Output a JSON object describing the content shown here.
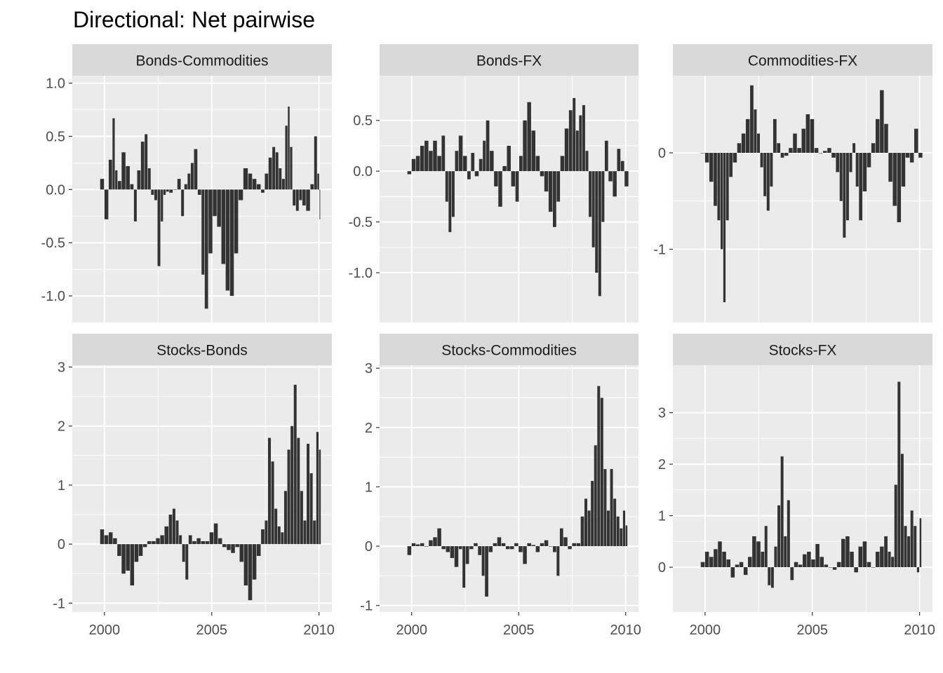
{
  "title": "Directional: Net pairwise",
  "colors": {
    "panel_bg": "#EBEBEB",
    "strip_bg": "#D9D9D9",
    "grid_major": "#FFFFFF",
    "bar": "#333333",
    "axis_text": "#4D4D4D",
    "strip_text": "#1A1A1A"
  },
  "chart_data": [
    {
      "type": "bar",
      "facet": "Bonds-Commodities",
      "x_range": [
        1998.5,
        2010.6
      ],
      "ylim": [
        -1.25,
        1.07
      ],
      "yticks": [
        -1.0,
        -0.5,
        0.0,
        0.5,
        1.0
      ],
      "ytick_labels": [
        "-1.0",
        "-0.5",
        "0.0",
        "0.5",
        "1.0"
      ],
      "xticks": [
        2000,
        2005,
        2010
      ],
      "xtick_labels": [],
      "x": [
        1999.9,
        2000.1,
        2000.3,
        2000.45,
        2000.55,
        2000.7,
        2000.9,
        2001.1,
        2001.3,
        2001.45,
        2001.6,
        2001.8,
        2001.95,
        2002.1,
        2002.25,
        2002.4,
        2002.55,
        2002.7,
        2002.8,
        2002.95,
        2003.1,
        2003.3,
        2003.5,
        2003.65,
        2003.8,
        2003.95,
        2004.1,
        2004.25,
        2004.45,
        2004.6,
        2004.75,
        2004.95,
        2005.15,
        2005.35,
        2005.55,
        2005.75,
        2005.95,
        2006.15,
        2006.35,
        2006.6,
        2006.8,
        2007.0,
        2007.2,
        2007.4,
        2007.55,
        2007.75,
        2007.9,
        2008.05,
        2008.2,
        2008.35,
        2008.5,
        2008.6,
        2008.7,
        2008.85,
        2009.0,
        2009.15,
        2009.3,
        2009.5,
        2009.7,
        2009.85,
        2010.0,
        2010.05
      ],
      "values": [
        0.1,
        -0.28,
        0.28,
        0.67,
        0.18,
        0.08,
        0.35,
        0.22,
        0.05,
        -0.3,
        0.18,
        0.45,
        0.52,
        0.2,
        -0.05,
        -0.1,
        -0.72,
        -0.3,
        -0.05,
        -0.02,
        -0.03,
        0.0,
        0.1,
        -0.25,
        0.05,
        0.15,
        0.25,
        0.38,
        -0.05,
        -0.8,
        -1.12,
        -0.6,
        -0.25,
        -0.35,
        -0.7,
        -0.95,
        -1.0,
        -0.6,
        -0.1,
        0.2,
        0.15,
        0.1,
        0.05,
        -0.03,
        0.15,
        0.3,
        0.4,
        0.35,
        0.2,
        0.1,
        0.6,
        0.78,
        0.4,
        -0.15,
        -0.2,
        -0.1,
        -0.15,
        -0.2,
        0.05,
        0.5,
        0.15,
        -0.28
      ]
    },
    {
      "type": "bar",
      "facet": "Bonds-FX",
      "x_range": [
        1998.5,
        2010.6
      ],
      "ylim": [
        -1.49,
        0.94
      ],
      "yticks": [
        -1.0,
        -0.5,
        0.0,
        0.5
      ],
      "ytick_labels": [
        "-1.0",
        "-0.5",
        "0.0",
        "0.5"
      ],
      "xticks": [
        2000,
        2005,
        2010
      ],
      "xtick_labels": [],
      "x": [
        1999.9,
        2000.1,
        2000.3,
        2000.5,
        2000.7,
        2000.9,
        2001.1,
        2001.3,
        2001.5,
        2001.65,
        2001.8,
        2001.95,
        2002.1,
        2002.3,
        2002.5,
        2002.7,
        2002.85,
        2003.05,
        2003.25,
        2003.4,
        2003.55,
        2003.75,
        2003.95,
        2004.15,
        2004.35,
        2004.55,
        2004.75,
        2004.95,
        2005.1,
        2005.3,
        2005.5,
        2005.7,
        2005.9,
        2006.1,
        2006.3,
        2006.5,
        2006.7,
        2006.85,
        2007.05,
        2007.25,
        2007.45,
        2007.6,
        2007.75,
        2007.9,
        2008.05,
        2008.2,
        2008.35,
        2008.5,
        2008.65,
        2008.8,
        2008.95,
        2009.1,
        2009.3,
        2009.5,
        2009.7,
        2009.85,
        2010.05
      ],
      "values": [
        -0.03,
        0.12,
        0.15,
        0.25,
        0.3,
        0.2,
        0.3,
        0.15,
        0.35,
        -0.3,
        -0.6,
        -0.45,
        0.2,
        0.35,
        0.15,
        -0.08,
        0.18,
        -0.05,
        0.12,
        0.3,
        0.5,
        0.2,
        -0.15,
        -0.35,
        0.05,
        0.25,
        -0.15,
        -0.3,
        0.15,
        0.5,
        0.68,
        0.4,
        0.15,
        -0.05,
        -0.2,
        -0.4,
        -0.55,
        -0.3,
        0.15,
        0.42,
        0.6,
        0.72,
        0.4,
        0.55,
        0.65,
        0.2,
        -0.45,
        -0.75,
        -1.0,
        -1.23,
        -0.5,
        0.3,
        -0.1,
        -0.25,
        0.22,
        0.1,
        -0.15
      ]
    },
    {
      "type": "bar",
      "facet": "Commodities-FX",
      "x_range": [
        1998.5,
        2010.6
      ],
      "ylim": [
        -1.76,
        0.8
      ],
      "yticks": [
        -1,
        0
      ],
      "ytick_labels": [
        "-1",
        "0"
      ],
      "xticks": [
        2000,
        2005,
        2010
      ],
      "xtick_labels": [],
      "x": [
        1999.9,
        2000.1,
        2000.3,
        2000.5,
        2000.65,
        2000.8,
        2000.9,
        2001.05,
        2001.2,
        2001.4,
        2001.6,
        2001.8,
        2002.0,
        2002.2,
        2002.35,
        2002.5,
        2002.65,
        2002.8,
        2002.95,
        2003.1,
        2003.25,
        2003.45,
        2003.6,
        2003.8,
        2004.0,
        2004.2,
        2004.4,
        2004.6,
        2004.8,
        2005.0,
        2005.2,
        2005.4,
        2005.6,
        2005.8,
        2006.0,
        2006.2,
        2006.35,
        2006.5,
        2006.65,
        2006.8,
        2006.95,
        2007.1,
        2007.25,
        2007.45,
        2007.65,
        2007.85,
        2008.05,
        2008.25,
        2008.45,
        2008.65,
        2008.85,
        2009.05,
        2009.25,
        2009.45,
        2009.65,
        2009.85,
        2010.05
      ],
      "values": [
        0.0,
        -0.1,
        -0.3,
        -0.55,
        -0.7,
        -1.0,
        -1.55,
        -0.7,
        -0.25,
        -0.1,
        0.1,
        0.2,
        0.35,
        0.7,
        0.45,
        0.2,
        -0.15,
        -0.45,
        -0.6,
        -0.35,
        0.35,
        0.1,
        -0.05,
        -0.03,
        0.05,
        0.2,
        0.05,
        0.25,
        0.4,
        0.35,
        0.05,
        0.0,
        0.02,
        0.05,
        -0.05,
        -0.2,
        -0.5,
        -0.88,
        -0.7,
        -0.2,
        0.1,
        -0.35,
        -0.7,
        -0.4,
        -0.15,
        0.1,
        0.35,
        0.65,
        0.3,
        -0.3,
        -0.55,
        -0.72,
        -0.35,
        -0.05,
        -0.1,
        0.25,
        -0.05
      ]
    },
    {
      "type": "bar",
      "facet": "Stocks-Bonds",
      "x_range": [
        1998.5,
        2010.6
      ],
      "ylim": [
        -1.15,
        3.03
      ],
      "yticks": [
        -1,
        0,
        1,
        2,
        3
      ],
      "ytick_labels": [
        "-1",
        "0",
        "1",
        "2",
        "3"
      ],
      "xticks": [
        2000,
        2005,
        2010
      ],
      "xtick_labels": [
        "2000",
        "2005",
        "2010"
      ],
      "x": [
        1999.9,
        2000.1,
        2000.3,
        2000.5,
        2000.7,
        2000.9,
        2001.1,
        2001.3,
        2001.5,
        2001.7,
        2001.9,
        2002.1,
        2002.3,
        2002.5,
        2002.7,
        2002.9,
        2003.1,
        2003.25,
        2003.4,
        2003.55,
        2003.7,
        2003.85,
        2004.0,
        2004.2,
        2004.4,
        2004.6,
        2004.8,
        2005.0,
        2005.2,
        2005.4,
        2005.6,
        2005.8,
        2006.0,
        2006.2,
        2006.4,
        2006.6,
        2006.8,
        2007.0,
        2007.2,
        2007.4,
        2007.55,
        2007.7,
        2007.85,
        2008.0,
        2008.15,
        2008.3,
        2008.45,
        2008.6,
        2008.75,
        2008.9,
        2009.05,
        2009.2,
        2009.35,
        2009.5,
        2009.65,
        2009.8,
        2009.95,
        2010.05
      ],
      "values": [
        0.25,
        0.15,
        0.2,
        0.1,
        -0.2,
        -0.5,
        -0.45,
        -0.7,
        -0.3,
        -0.2,
        -0.05,
        0.05,
        0.05,
        0.1,
        0.15,
        0.3,
        0.5,
        0.6,
        0.4,
        0.15,
        -0.3,
        -0.6,
        0.15,
        0.05,
        0.1,
        0.05,
        0.05,
        0.2,
        0.35,
        0.1,
        -0.05,
        -0.1,
        -0.15,
        -0.05,
        -0.3,
        -0.7,
        -0.95,
        -0.6,
        -0.2,
        0.25,
        0.4,
        1.8,
        1.4,
        0.6,
        0.3,
        0.2,
        0.9,
        1.6,
        2.0,
        2.7,
        1.8,
        0.9,
        0.4,
        1.7,
        1.2,
        0.4,
        1.9,
        1.6
      ]
    },
    {
      "type": "bar",
      "facet": "Stocks-Commodities",
      "x_range": [
        1998.5,
        2010.6
      ],
      "ylim": [
        -1.11,
        3.05
      ],
      "yticks": [
        -1,
        0,
        1,
        2,
        3
      ],
      "ytick_labels": [
        "-1",
        "0",
        "1",
        "2",
        "3"
      ],
      "xticks": [
        2000,
        2005,
        2010
      ],
      "xtick_labels": [
        "2000",
        "2005",
        "2010"
      ],
      "x": [
        1999.9,
        2000.1,
        2000.3,
        2000.5,
        2000.7,
        2000.9,
        2001.1,
        2001.3,
        2001.5,
        2001.7,
        2001.9,
        2002.1,
        2002.3,
        2002.45,
        2002.6,
        2002.8,
        2003.0,
        2003.2,
        2003.35,
        2003.5,
        2003.7,
        2003.9,
        2004.1,
        2004.3,
        2004.5,
        2004.7,
        2004.9,
        2005.1,
        2005.3,
        2005.5,
        2005.7,
        2005.9,
        2006.1,
        2006.3,
        2006.5,
        2006.7,
        2006.85,
        2007.0,
        2007.2,
        2007.4,
        2007.6,
        2007.8,
        2008.0,
        2008.15,
        2008.3,
        2008.45,
        2008.6,
        2008.75,
        2008.9,
        2009.05,
        2009.2,
        2009.35,
        2009.5,
        2009.65,
        2009.8,
        2009.95,
        2010.05
      ],
      "values": [
        -0.15,
        0.05,
        0.03,
        0.05,
        0.0,
        0.1,
        0.15,
        0.3,
        -0.05,
        -0.1,
        -0.2,
        -0.35,
        -0.05,
        -0.7,
        -0.3,
        -0.05,
        0.05,
        -0.15,
        -0.5,
        -0.85,
        -0.1,
        0.05,
        0.15,
        0.05,
        -0.05,
        -0.05,
        0.05,
        -0.1,
        -0.3,
        0.05,
        0.02,
        -0.1,
        0.05,
        0.1,
        0.0,
        -0.1,
        -0.5,
        0.3,
        0.15,
        -0.05,
        0.05,
        0.05,
        0.5,
        0.8,
        0.6,
        1.1,
        1.7,
        2.7,
        2.5,
        1.3,
        0.6,
        1.3,
        0.8,
        0.5,
        0.3,
        0.6,
        0.35
      ]
    },
    {
      "type": "bar",
      "facet": "Stocks-FX",
      "x_range": [
        1998.5,
        2010.6
      ],
      "ylim": [
        -0.87,
        3.92
      ],
      "yticks": [
        0,
        1,
        2,
        3
      ],
      "ytick_labels": [
        "0",
        "1",
        "2",
        "3"
      ],
      "xticks": [
        2000,
        2005,
        2010
      ],
      "xtick_labels": [
        "2000",
        "2005",
        "2010"
      ],
      "x": [
        1999.9,
        2000.1,
        2000.3,
        2000.5,
        2000.7,
        2000.9,
        2001.1,
        2001.3,
        2001.5,
        2001.7,
        2001.9,
        2002.1,
        2002.3,
        2002.5,
        2002.7,
        2002.85,
        2003.0,
        2003.15,
        2003.3,
        2003.45,
        2003.6,
        2003.75,
        2003.9,
        2004.05,
        2004.25,
        2004.45,
        2004.65,
        2004.85,
        2005.05,
        2005.25,
        2005.45,
        2005.65,
        2005.85,
        2006.05,
        2006.25,
        2006.45,
        2006.65,
        2006.85,
        2007.05,
        2007.25,
        2007.45,
        2007.65,
        2007.85,
        2008.05,
        2008.25,
        2008.45,
        2008.6,
        2008.75,
        2008.9,
        2009.05,
        2009.2,
        2009.35,
        2009.5,
        2009.65,
        2009.8,
        2009.95,
        2010.05
      ],
      "values": [
        0.1,
        0.3,
        0.2,
        0.35,
        0.5,
        0.3,
        0.15,
        -0.2,
        0.05,
        0.1,
        -0.15,
        0.2,
        0.6,
        0.5,
        0.3,
        0.8,
        -0.35,
        -0.4,
        0.4,
        1.2,
        2.15,
        0.6,
        1.3,
        -0.25,
        0.1,
        0.05,
        0.25,
        0.3,
        0.15,
        0.45,
        0.2,
        0.05,
        0.0,
        -0.05,
        0.1,
        0.55,
        0.6,
        0.3,
        -0.1,
        0.4,
        0.5,
        0.1,
        0.0,
        0.3,
        0.4,
        0.6,
        0.3,
        0.2,
        1.6,
        3.6,
        2.2,
        0.8,
        0.6,
        1.1,
        0.8,
        -0.1,
        0.95
      ]
    }
  ]
}
